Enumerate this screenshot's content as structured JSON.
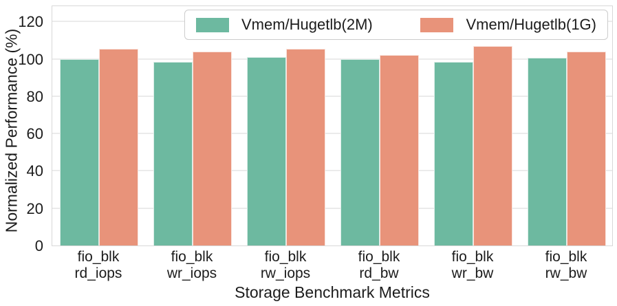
{
  "chart_data": {
    "type": "bar",
    "title": "",
    "xlabel": "Storage Benchmark Metrics",
    "ylabel": "Normalized Performance (%)",
    "ylim": [
      0,
      129
    ],
    "yticks": [
      0,
      20,
      40,
      60,
      80,
      100,
      120
    ],
    "grid": "horizontal-only",
    "legend_position": "top-center-inside",
    "categories": [
      [
        "fio_blk",
        "rd_iops"
      ],
      [
        "fio_blk",
        "wr_iops"
      ],
      [
        "fio_blk",
        "rw_iops"
      ],
      [
        "fio_blk",
        "rd_bw"
      ],
      [
        "fio_blk",
        "wr_bw"
      ],
      [
        "fio_blk",
        "rw_bw"
      ]
    ],
    "series": [
      {
        "name": "Vmem/Hugetlb(2M)",
        "color": "#6db9a0",
        "values": [
          100,
          98.5,
          101,
          100,
          98.5,
          100.5
        ]
      },
      {
        "name": "Vmem/Hugetlb(1G)",
        "color": "#e8937a",
        "values": [
          105.5,
          104,
          105.5,
          102,
          107,
          104
        ]
      }
    ]
  },
  "colors": {
    "background": "#ffffff",
    "gridline": "#ebebeb",
    "spine": "#d8d8d8",
    "text": "#1c1c1c",
    "legend_border": "#cccccc"
  }
}
